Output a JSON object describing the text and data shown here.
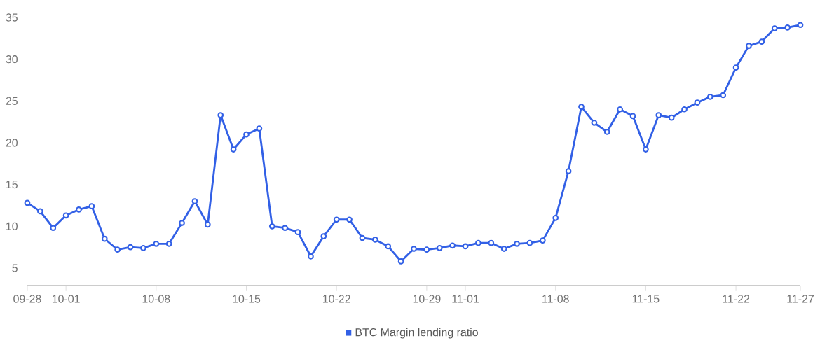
{
  "chart_data": {
    "type": "line",
    "categories": [
      "09-28",
      null,
      null,
      "10-01",
      null,
      null,
      null,
      null,
      null,
      null,
      "10-08",
      null,
      null,
      null,
      null,
      null,
      null,
      "10-15",
      null,
      null,
      null,
      null,
      null,
      null,
      "10-22",
      null,
      null,
      null,
      null,
      null,
      null,
      "10-29",
      null,
      null,
      "11-01",
      null,
      null,
      null,
      null,
      null,
      null,
      "11-08",
      null,
      null,
      null,
      null,
      null,
      null,
      "11-15",
      null,
      null,
      null,
      null,
      null,
      null,
      "11-22",
      null,
      null,
      null,
      null,
      "11-27"
    ],
    "series": [
      {
        "name": "BTC Margin lending ratio",
        "color": "#3260e6",
        "values": [
          12.8,
          11.8,
          9.8,
          11.3,
          12.0,
          12.4,
          8.5,
          7.2,
          7.5,
          7.4,
          7.9,
          7.9,
          10.4,
          13.0,
          10.2,
          23.3,
          19.2,
          21.0,
          21.7,
          10.0,
          9.8,
          9.3,
          6.4,
          8.8,
          10.8,
          10.8,
          8.6,
          8.4,
          7.6,
          5.8,
          7.3,
          7.2,
          7.4,
          7.7,
          7.6,
          8.0,
          8.0,
          7.3,
          7.9,
          8.0,
          8.3,
          11.0,
          16.6,
          24.3,
          22.4,
          21.3,
          24.0,
          23.2,
          19.2,
          23.3,
          23.0,
          24.0,
          24.8,
          25.5,
          25.7,
          29.0,
          31.6,
          32.1,
          33.7,
          33.8,
          34.1
        ]
      }
    ],
    "ylim": [
      2.9,
      35
    ],
    "yticks": [
      5,
      10,
      15,
      20,
      25,
      30,
      35
    ],
    "marker": "circle",
    "line_style": "solid",
    "legend": "bottom"
  }
}
